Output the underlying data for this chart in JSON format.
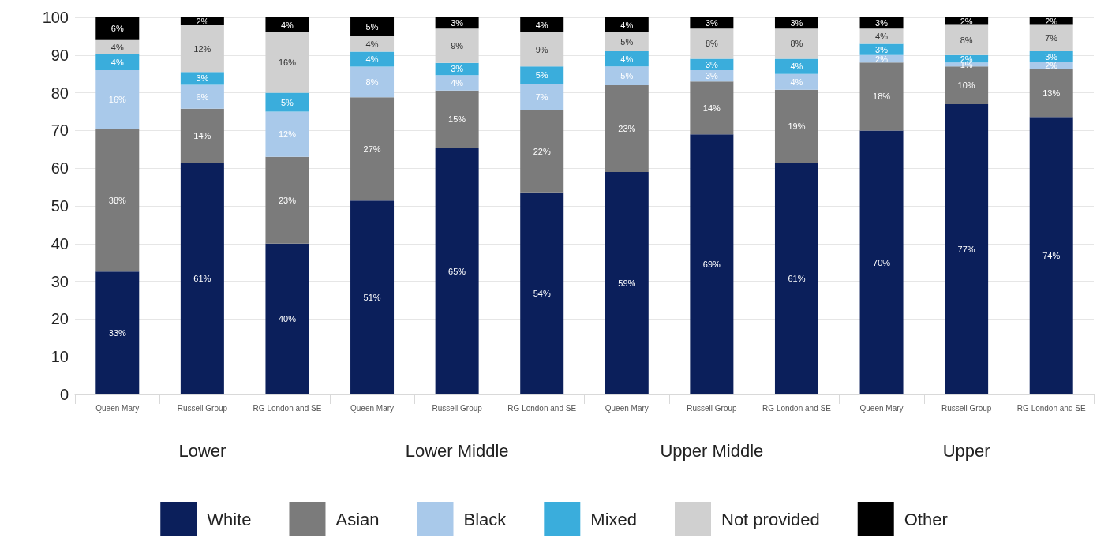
{
  "chart_data": {
    "type": "bar",
    "stacked": true,
    "categories": [
      "Queen Mary",
      "Russell Group",
      "RG London and SE",
      "Queen Mary",
      "Russell Group",
      "RG London and SE",
      "Queen Mary",
      "Russell Group",
      "RG London and SE",
      "Queen Mary",
      "Russell Group",
      "RG London and SE"
    ],
    "annotations": [
      "Lower",
      "Lower Middle",
      "Upper Middle",
      "Upper"
    ],
    "series": [
      {
        "name": "White",
        "color": "#0b1f5b",
        "values": [
          32.6,
          61.4,
          40,
          51.4,
          65.4,
          53.6,
          59,
          69,
          61.4,
          70,
          77,
          73.6
        ],
        "value_labels": [
          "33%",
          "61%",
          "40%",
          "51%",
          "65%",
          "54%",
          "59%",
          "69%",
          "61%",
          "70%",
          "77%",
          "74%"
        ]
      },
      {
        "name": "Asian",
        "color": "#7b7b7b",
        "values": [
          37.7,
          14.4,
          23,
          27.4,
          15.2,
          21.8,
          23,
          14,
          19.4,
          18,
          10,
          12.6
        ],
        "value_labels": [
          "38%",
          "14%",
          "23%",
          "27%",
          "15%",
          "22%",
          "23%",
          "14%",
          "19%",
          "18%",
          "10%",
          "13%"
        ]
      },
      {
        "name": "Black",
        "color": "#a9c9ea",
        "values": [
          15.7,
          6.3,
          12,
          8.1,
          4.1,
          7,
          5,
          3,
          4.2,
          2,
          1,
          1.9
        ],
        "value_labels": [
          "16%",
          "6%",
          "12%",
          "8%",
          "4%",
          "7%",
          "5%",
          "3%",
          "4%",
          "2%",
          "1%",
          "2%"
        ]
      },
      {
        "name": "Mixed",
        "color": "#3aaddc",
        "values": [
          4.2,
          3.4,
          5,
          4,
          3.2,
          4.6,
          4,
          3,
          4,
          3,
          2,
          2.9
        ],
        "value_labels": [
          "4%",
          "3%",
          "5%",
          "4%",
          "3%",
          "5%",
          "4%",
          "3%",
          "4%",
          "3%",
          "2%",
          "3%"
        ]
      },
      {
        "name": "Not provided",
        "color": "#d0d0d0",
        "values": [
          3.8,
          12.4,
          16,
          4.1,
          9.1,
          9,
          5,
          8,
          8,
          4,
          8,
          7
        ],
        "value_labels": [
          "4%",
          "12%",
          "16%",
          "4%",
          "9%",
          "9%",
          "5%",
          "8%",
          "8%",
          "4%",
          "8%",
          "7%"
        ]
      },
      {
        "name": "Other",
        "color": "#000000",
        "values": [
          6,
          2.1,
          4,
          5,
          3,
          4,
          4,
          3,
          3,
          3,
          2,
          2
        ],
        "value_labels": [
          "6%",
          "2%",
          "4%",
          "5%",
          "3%",
          "4%",
          "4%",
          "3%",
          "3%",
          "3%",
          "2%",
          "2%"
        ]
      }
    ],
    "ylim": [
      0,
      100
    ],
    "yticks": [
      0,
      10,
      20,
      30,
      40,
      50,
      60,
      70,
      80,
      90,
      100
    ],
    "grid": "y",
    "legend": "bottom"
  }
}
